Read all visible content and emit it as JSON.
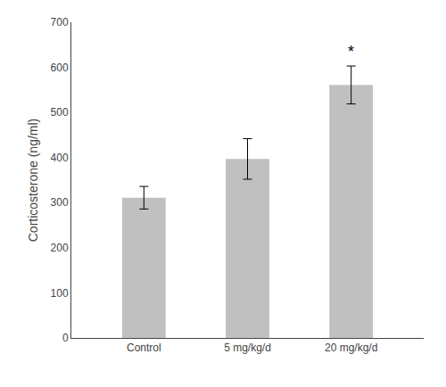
{
  "chart_data": {
    "type": "bar",
    "categories": [
      "Control",
      "5 mg/kg/d",
      "20 mg/kg/d"
    ],
    "values": [
      311,
      397,
      561
    ],
    "errors": [
      25,
      45,
      42
    ],
    "color": "#c0c0c0",
    "ylabel": "Corticosterone (ng/ml)",
    "ylim": [
      0,
      700
    ],
    "yticks": [
      0,
      100,
      200,
      300,
      400,
      500,
      600,
      700
    ],
    "grid": false,
    "annotations": [
      {
        "x": "20 mg/kg/d",
        "text": "*"
      }
    ]
  }
}
